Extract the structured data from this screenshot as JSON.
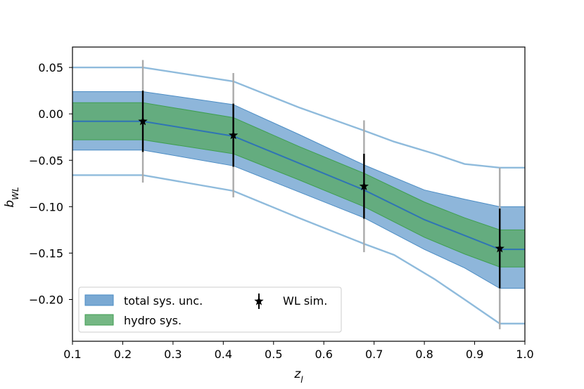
{
  "chart_data": {
    "type": "line",
    "xlabel": "z_l",
    "ylabel": "b_WL",
    "xlim": [
      0.1,
      1.0
    ],
    "ylim": [
      -0.245,
      0.072
    ],
    "x_ticks": [
      0.1,
      0.2,
      0.3,
      0.4,
      0.5,
      0.6,
      0.7,
      0.8,
      0.9,
      1.0
    ],
    "x_tick_labels": [
      "0.1",
      "0.2",
      "0.3",
      "0.4",
      "0.5",
      "0.6",
      "0.7",
      "0.8",
      "0.9",
      "1.0"
    ],
    "y_ticks": [
      0.05,
      0.0,
      -0.05,
      -0.1,
      -0.15,
      -0.2
    ],
    "y_tick_labels": [
      "0.05",
      "0.00",
      "−0.05",
      "−0.10",
      "−0.15",
      "−0.20"
    ],
    "grid": false,
    "legend_position": "lower-left",
    "colors": {
      "total_band": "#7aa9d3",
      "total_band_edge": "#4b8cc4",
      "hydro_band": "#5daa6f",
      "hydro_band_edge": "#3f9e50",
      "outer_line": "#8fbbdc",
      "mean_line": "#2f74b5",
      "sim_point": "#000000",
      "outer_errorbar": "#aaaaaa"
    },
    "outer_envelope": {
      "x": [
        0.1,
        0.24,
        0.42,
        0.55,
        0.68,
        0.74,
        0.82,
        0.88,
        0.95,
        1.0
      ],
      "upper": [
        0.05,
        0.05,
        0.035,
        0.007,
        -0.018,
        -0.03,
        -0.043,
        -0.054,
        -0.058,
        -0.058
      ],
      "lower": [
        -0.066,
        -0.066,
        -0.083,
        -0.112,
        -0.14,
        -0.152,
        -0.178,
        -0.2,
        -0.226,
        -0.226
      ]
    },
    "series": [
      {
        "name": "total sys. unc.",
        "x": [
          0.1,
          0.24,
          0.42,
          0.55,
          0.68,
          0.8,
          0.88,
          0.95,
          1.0
        ],
        "upper": [
          0.024,
          0.024,
          0.01,
          -0.022,
          -0.055,
          -0.082,
          -0.092,
          -0.1,
          -0.1
        ],
        "lower": [
          -0.039,
          -0.039,
          -0.056,
          -0.084,
          -0.112,
          -0.146,
          -0.166,
          -0.188,
          -0.188
        ]
      },
      {
        "name": "hydro sys.",
        "x": [
          0.1,
          0.24,
          0.42,
          0.55,
          0.68,
          0.8,
          0.88,
          0.95,
          1.0
        ],
        "upper": [
          0.012,
          0.012,
          -0.004,
          -0.035,
          -0.064,
          -0.095,
          -0.112,
          -0.125,
          -0.125
        ],
        "lower": [
          -0.028,
          -0.028,
          -0.043,
          -0.071,
          -0.1,
          -0.133,
          -0.151,
          -0.165,
          -0.165
        ]
      }
    ],
    "mean_line": {
      "x": [
        0.1,
        0.24,
        0.42,
        0.55,
        0.68,
        0.8,
        0.88,
        0.95,
        1.0
      ],
      "y": [
        -0.008,
        -0.008,
        -0.024,
        -0.053,
        -0.082,
        -0.114,
        -0.131,
        -0.146,
        -0.146
      ]
    },
    "points": {
      "name": "WL sim.",
      "x": [
        0.24,
        0.42,
        0.68,
        0.95
      ],
      "y": [
        -0.008,
        -0.023,
        -0.078,
        -0.145
      ],
      "err_inner": [
        0.033,
        0.034,
        0.035,
        0.043
      ],
      "err_outer": [
        0.066,
        0.067,
        0.071,
        0.087
      ]
    },
    "legend": [
      {
        "label": "total sys. unc.",
        "kind": "patch-total"
      },
      {
        "label": "hydro sys.",
        "kind": "patch-hydro"
      },
      {
        "label": "WL sim.",
        "kind": "marker"
      }
    ]
  }
}
